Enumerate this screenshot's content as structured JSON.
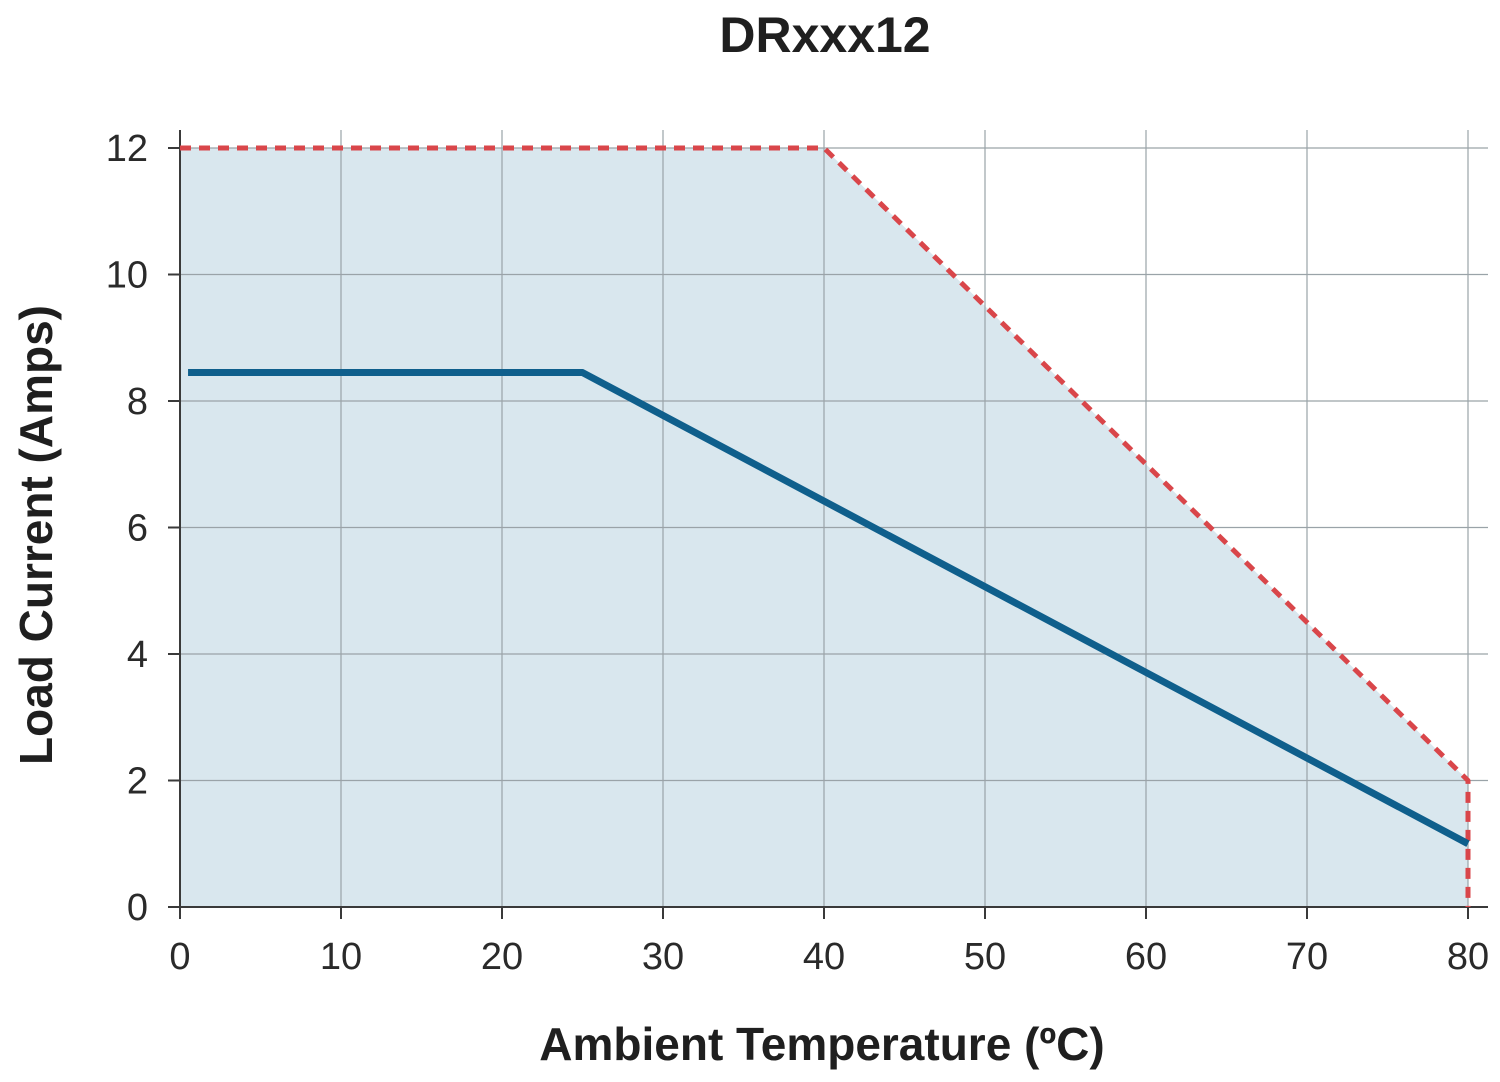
{
  "colors": {
    "fill": "#d9e7ee",
    "line": "#0f5f8c",
    "limit": "#d9464a"
  },
  "chart_data": {
    "type": "line",
    "title": "DRxxx12",
    "xlabel": "Ambient Temperature (ºC)",
    "ylabel": "Load Current (Amps)",
    "xlim": [
      0,
      80
    ],
    "ylim": [
      0,
      12
    ],
    "x_ticks": [
      0,
      10,
      20,
      30,
      40,
      50,
      60,
      70,
      80
    ],
    "y_ticks": [
      0,
      2,
      4,
      6,
      8,
      10,
      12
    ],
    "grid": true,
    "legend": "none",
    "series": [
      {
        "style": "dashed",
        "filled": true,
        "x": [
          0,
          40,
          80,
          80
        ],
        "y": [
          12,
          12,
          2,
          0
        ]
      },
      {
        "style": "solid",
        "filled": false,
        "x": [
          0.5,
          25,
          80
        ],
        "y": [
          8.45,
          8.45,
          1.0
        ]
      }
    ]
  }
}
